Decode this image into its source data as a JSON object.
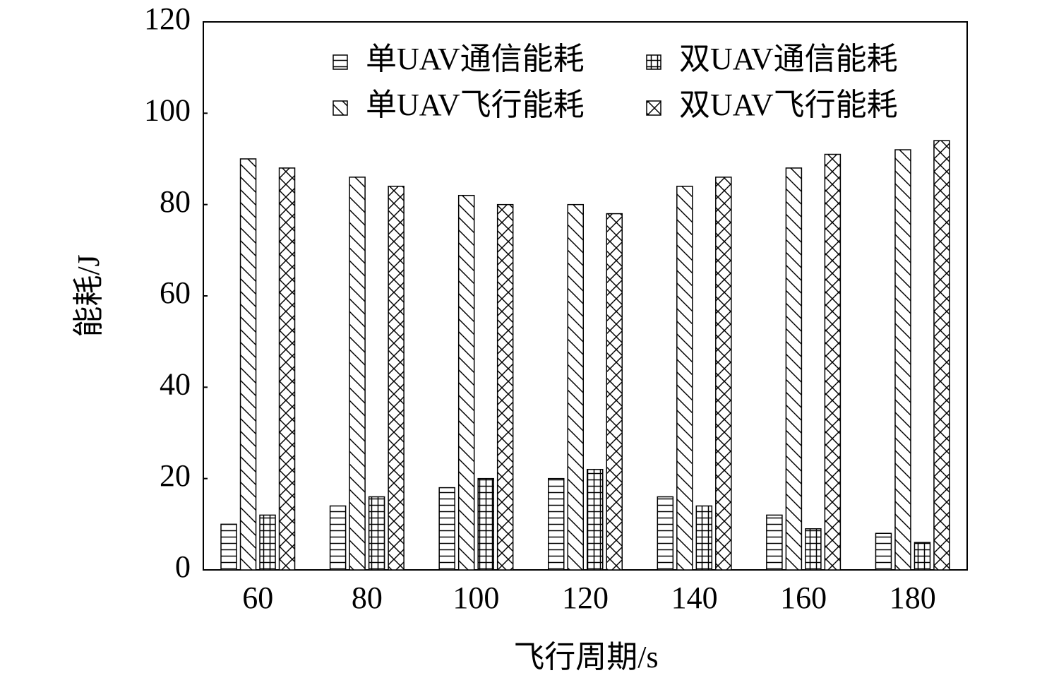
{
  "chart_data": {
    "type": "bar",
    "xlabel": "飞行周期/s",
    "ylabel": "能耗/J",
    "categories": [
      "60",
      "80",
      "100",
      "120",
      "140",
      "160",
      "180"
    ],
    "series": [
      {
        "name": "单UAV通信能耗",
        "color": "#000000",
        "hatch": "horizontal",
        "values": [
          10,
          14,
          18,
          20,
          16,
          12,
          8
        ]
      },
      {
        "name": "单UAV飞行能耗",
        "color": "#000000",
        "hatch": "diagonal",
        "values": [
          90,
          86,
          82,
          80,
          84,
          88,
          92
        ]
      },
      {
        "name": "双UAV通信能耗",
        "color": "#000000",
        "hatch": "grid",
        "values": [
          12,
          16,
          20,
          22,
          14,
          9,
          6
        ]
      },
      {
        "name": "双UAV飞行能耗",
        "color": "#000000",
        "hatch": "cross",
        "values": [
          88,
          84,
          80,
          78,
          86,
          91,
          94
        ]
      }
    ],
    "ylim": [
      0,
      120
    ],
    "yticks": [
      0,
      20,
      40,
      60,
      80,
      100,
      120
    ],
    "grid": false,
    "legend": "top-right"
  }
}
